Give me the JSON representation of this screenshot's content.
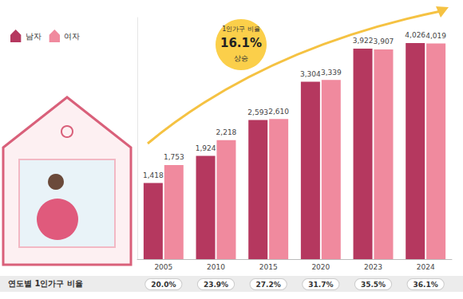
{
  "chart_data": {
    "type": "bar",
    "categories": [
      "2005",
      "2010",
      "2015",
      "2020",
      "2023",
      "2024"
    ],
    "series": [
      {
        "name": "남자",
        "color": "#b5385f",
        "values": [
          1418,
          1924,
          2593,
          3304,
          3922,
          4026
        ],
        "value_labels": [
          "1,418",
          "1,924",
          "2,593",
          "3,304",
          "3,922",
          "4,026"
        ]
      },
      {
        "name": "여자",
        "color": "#f08a9e",
        "values": [
          1753,
          2218,
          2610,
          3339,
          3907,
          4019
        ],
        "value_labels": [
          "1,753",
          "2,218",
          "2,610",
          "3,339",
          "3,907",
          "4,019"
        ]
      }
    ],
    "ylim": [
      0,
      4500
    ],
    "grid": false,
    "legend": "top-left",
    "data_labels": true,
    "tick_labels": "x",
    "annotation": {
      "text": "1인가구 비율",
      "value": 16.1,
      "label": "16.1%",
      "suffix": "상승"
    },
    "rates_title": "연도별 1인가구 비율",
    "rates": [
      {
        "value": 20.0,
        "label": "20.0%"
      },
      {
        "value": 23.9,
        "label": "23.9%"
      },
      {
        "value": 27.2,
        "label": "27.2%"
      },
      {
        "value": 31.7,
        "label": "31.7%"
      },
      {
        "value": 35.5,
        "label": "35.5%"
      },
      {
        "value": 36.1,
        "label": "36.1%"
      }
    ]
  }
}
